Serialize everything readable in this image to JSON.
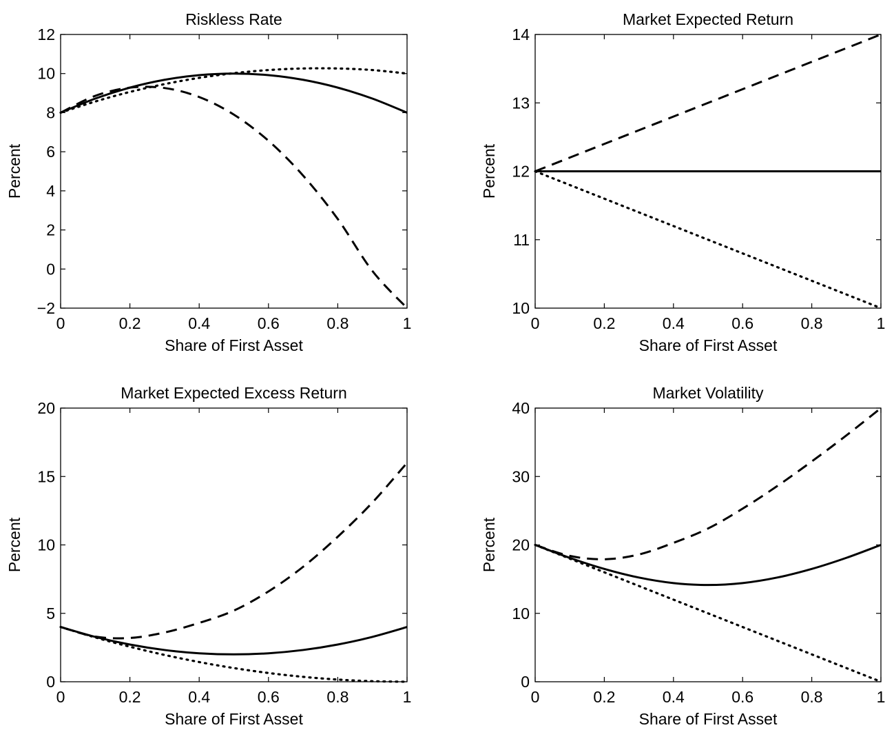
{
  "chart_data": [
    {
      "type": "line",
      "title": "Riskless Rate",
      "xlabel": "Share of First Asset",
      "ylabel": "Percent",
      "xlim": [
        0,
        1
      ],
      "ylim": [
        -2,
        12
      ],
      "xticks": [
        0,
        0.2,
        0.4,
        0.6,
        0.8,
        1
      ],
      "xtick_labels": [
        "0",
        "0.2",
        "0.4",
        "0.6",
        "0.8",
        "1"
      ],
      "yticks": [
        -2,
        0,
        2,
        4,
        6,
        8,
        10,
        12
      ],
      "ytick_labels": [
        "−2",
        "0",
        "2",
        "4",
        "6",
        "8",
        "10",
        "12"
      ],
      "grid": false,
      "x": [
        0,
        0.1,
        0.2,
        0.3,
        0.4,
        0.5,
        0.6,
        0.7,
        0.8,
        0.9,
        1
      ],
      "series": [
        {
          "style": "solid",
          "values": [
            8,
            8.72,
            9.28,
            9.68,
            9.92,
            10,
            9.92,
            9.68,
            9.28,
            8.72,
            8
          ]
        },
        {
          "style": "dashed",
          "values": [
            8,
            8.86,
            9.28,
            9.26,
            8.8,
            7.9,
            6.56,
            4.78,
            2.56,
            -0.1,
            -2
          ]
        },
        {
          "style": "dotted",
          "values": [
            8,
            8.57,
            9.06,
            9.46,
            9.78,
            10.02,
            10.18,
            10.26,
            10.26,
            10.18,
            10
          ]
        }
      ]
    },
    {
      "type": "line",
      "title": "Market Expected Return",
      "xlabel": "Share of First Asset",
      "ylabel": "Percent",
      "xlim": [
        0,
        1
      ],
      "ylim": [
        10,
        14
      ],
      "xticks": [
        0,
        0.2,
        0.4,
        0.6,
        0.8,
        1
      ],
      "xtick_labels": [
        "0",
        "0.2",
        "0.4",
        "0.6",
        "0.8",
        "1"
      ],
      "yticks": [
        10,
        11,
        12,
        13,
        14
      ],
      "ytick_labels": [
        "10",
        "11",
        "12",
        "13",
        "14"
      ],
      "grid": false,
      "x": [
        0,
        1
      ],
      "series": [
        {
          "style": "solid",
          "values": [
            12,
            12
          ]
        },
        {
          "style": "dashed",
          "values": [
            12,
            14
          ]
        },
        {
          "style": "dotted",
          "values": [
            12,
            10
          ]
        }
      ]
    },
    {
      "type": "line",
      "title": "Market Expected Excess Return",
      "xlabel": "Share of First Asset",
      "ylabel": "Percent",
      "xlim": [
        0,
        1
      ],
      "ylim": [
        0,
        20
      ],
      "xticks": [
        0,
        0.2,
        0.4,
        0.6,
        0.8,
        1
      ],
      "xtick_labels": [
        "0",
        "0.2",
        "0.4",
        "0.6",
        "0.8",
        "1"
      ],
      "yticks": [
        0,
        5,
        10,
        15,
        20
      ],
      "ytick_labels": [
        "0",
        "5",
        "10",
        "15",
        "20"
      ],
      "grid": false,
      "x": [
        0,
        0.1,
        0.2,
        0.3,
        0.4,
        0.5,
        0.6,
        0.7,
        0.8,
        0.9,
        1
      ],
      "series": [
        {
          "style": "solid",
          "values": [
            4,
            3.28,
            2.72,
            2.32,
            2.08,
            2,
            2.08,
            2.32,
            2.72,
            3.28,
            4
          ]
        },
        {
          "style": "dashed",
          "values": [
            4,
            3.3,
            3.2,
            3.6,
            4.3,
            5.2,
            6.6,
            8.4,
            10.6,
            13.1,
            16
          ]
        },
        {
          "style": "dotted",
          "values": [
            4,
            3.24,
            2.56,
            1.96,
            1.44,
            1,
            0.64,
            0.36,
            0.16,
            0.04,
            0
          ]
        }
      ]
    },
    {
      "type": "line",
      "title": "Market Volatility",
      "xlabel": "Share of First Asset",
      "ylabel": "Percent",
      "xlim": [
        0,
        1
      ],
      "ylim": [
        0,
        40
      ],
      "xticks": [
        0,
        0.2,
        0.4,
        0.6,
        0.8,
        1
      ],
      "xtick_labels": [
        "0",
        "0.2",
        "0.4",
        "0.6",
        "0.8",
        "1"
      ],
      "yticks": [
        0,
        10,
        20,
        30,
        40
      ],
      "ytick_labels": [
        "0",
        "10",
        "20",
        "30",
        "40"
      ],
      "grid": false,
      "x": [
        0,
        0.1,
        0.2,
        0.3,
        0.4,
        0.5,
        0.6,
        0.7,
        0.8,
        0.9,
        1
      ],
      "series": [
        {
          "style": "solid",
          "values": [
            20,
            18.11,
            16.49,
            15.23,
            14.42,
            14.14,
            14.42,
            15.23,
            16.49,
            18.11,
            20
          ]
        },
        {
          "style": "dashed",
          "values": [
            20,
            18.4,
            17.9,
            18.6,
            20.3,
            22.4,
            25.3,
            28.6,
            32.2,
            36,
            40
          ]
        },
        {
          "style": "dotted",
          "values": [
            20,
            18,
            16,
            14,
            12,
            10,
            8,
            6,
            4,
            2,
            0
          ]
        }
      ]
    }
  ]
}
